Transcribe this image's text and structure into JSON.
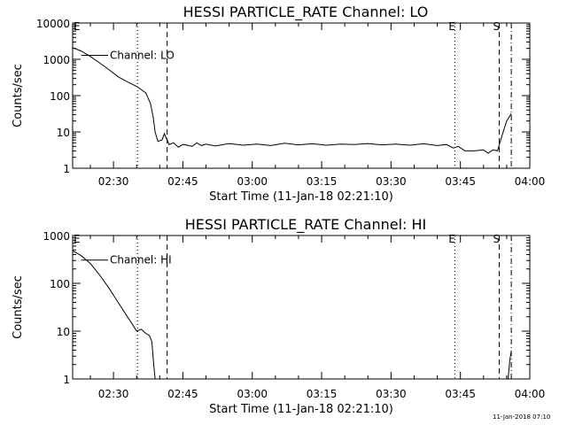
{
  "chart_data": [
    {
      "type": "line",
      "title": "HESSI PARTICLE_RATE Channel: LO",
      "xlabel": "Start Time (11-Jan-18 02:21:10)",
      "ylabel": "Counts/sec",
      "yscale": "log",
      "ylim": [
        1,
        10000
      ],
      "xlim_minutes": [
        21.17,
        120.0
      ],
      "x_ticks": [
        {
          "t": 30,
          "label": "02:30"
        },
        {
          "t": 45,
          "label": "02:45"
        },
        {
          "t": 60,
          "label": "03:00"
        },
        {
          "t": 75,
          "label": "03:15"
        },
        {
          "t": 90,
          "label": "03:30"
        },
        {
          "t": 105,
          "label": "03:45"
        },
        {
          "t": 120,
          "label": "04:00"
        }
      ],
      "y_ticks": [
        {
          "v": 1,
          "label": "1"
        },
        {
          "v": 10,
          "label": "10"
        },
        {
          "v": 100,
          "label": "100"
        },
        {
          "v": 1000,
          "label": "1000"
        },
        {
          "v": 10000,
          "label": "10000"
        }
      ],
      "series": [
        {
          "name": "Channel: LO",
          "x": [
            21.17,
            23,
            25,
            27,
            29,
            31,
            33,
            35,
            37,
            38,
            38.6,
            39,
            39.6,
            40.5,
            41,
            42,
            43,
            44,
            45,
            46,
            47,
            48,
            49,
            50,
            52,
            55,
            58,
            61,
            64,
            67,
            70,
            73,
            76,
            79,
            82,
            85,
            88,
            91,
            94,
            97,
            100,
            102,
            103.5,
            104.5,
            106,
            108,
            110,
            111,
            112,
            113,
            114,
            115,
            116
          ],
          "y": [
            2100,
            1700,
            1200,
            800,
            520,
            330,
            240,
            180,
            120,
            60,
            25,
            10,
            5.5,
            6,
            9,
            4.5,
            5,
            3.8,
            4.5,
            4.3,
            4.0,
            5.0,
            4.2,
            4.6,
            4.1,
            4.8,
            4.3,
            4.6,
            4.2,
            4.9,
            4.4,
            4.7,
            4.3,
            4.6,
            4.5,
            4.8,
            4.4,
            4.6,
            4.3,
            4.7,
            4.2,
            4.5,
            3.6,
            4.0,
            3.0,
            3.0,
            3.2,
            2.6,
            3.2,
            3.0,
            8,
            20,
            32
          ]
        }
      ],
      "vlines": [
        {
          "t": 35.2,
          "style": "dotted"
        },
        {
          "t": 41.6,
          "style": "dashed"
        },
        {
          "t": 103.8,
          "style": "dotted",
          "label": "E"
        },
        {
          "t": 113.4,
          "style": "dashed",
          "label": "S"
        },
        {
          "t": 116.0,
          "style": "dashdot"
        }
      ],
      "corner_label": "E",
      "legend_label": "Channel: LO"
    },
    {
      "type": "line",
      "title": "HESSI PARTICLE_RATE Channel: HI",
      "xlabel": "Start Time (11-Jan-18 02:21:10)",
      "ylabel": "Counts/sec",
      "yscale": "log",
      "ylim": [
        1,
        1000
      ],
      "xlim_minutes": [
        21.17,
        120.0
      ],
      "x_ticks": [
        {
          "t": 30,
          "label": "02:30"
        },
        {
          "t": 45,
          "label": "02:45"
        },
        {
          "t": 60,
          "label": "03:00"
        },
        {
          "t": 75,
          "label": "03:15"
        },
        {
          "t": 90,
          "label": "03:30"
        },
        {
          "t": 105,
          "label": "03:45"
        },
        {
          "t": 120,
          "label": "04:00"
        }
      ],
      "y_ticks": [
        {
          "v": 1,
          "label": "1"
        },
        {
          "v": 10,
          "label": "10"
        },
        {
          "v": 100,
          "label": "100"
        },
        {
          "v": 1000,
          "label": "1000"
        }
      ],
      "series": [
        {
          "name": "Channel: HI",
          "x": [
            21.17,
            23,
            25,
            27,
            29,
            31,
            33,
            34.5,
            35,
            36,
            37,
            37.8,
            38.3,
            38.7,
            39.0
          ],
          "y": [
            480,
            380,
            260,
            150,
            80,
            40,
            20,
            12,
            10,
            11,
            9,
            8,
            6,
            2,
            1
          ],
          "x2": [
            115.3,
            115.7,
            116.0
          ],
          "y2": [
            1,
            2.5,
            3.8
          ]
        }
      ],
      "vlines": [
        {
          "t": 35.2,
          "style": "dotted"
        },
        {
          "t": 41.6,
          "style": "dashed"
        },
        {
          "t": 103.8,
          "style": "dotted",
          "label": "E"
        },
        {
          "t": 113.4,
          "style": "dashed",
          "label": "S"
        },
        {
          "t": 116.0,
          "style": "dashdot"
        }
      ],
      "corner_label": "E",
      "legend_label": "Channel: HI"
    }
  ],
  "footer": {
    "timestamp": "11-Jan-2018 07:10"
  }
}
